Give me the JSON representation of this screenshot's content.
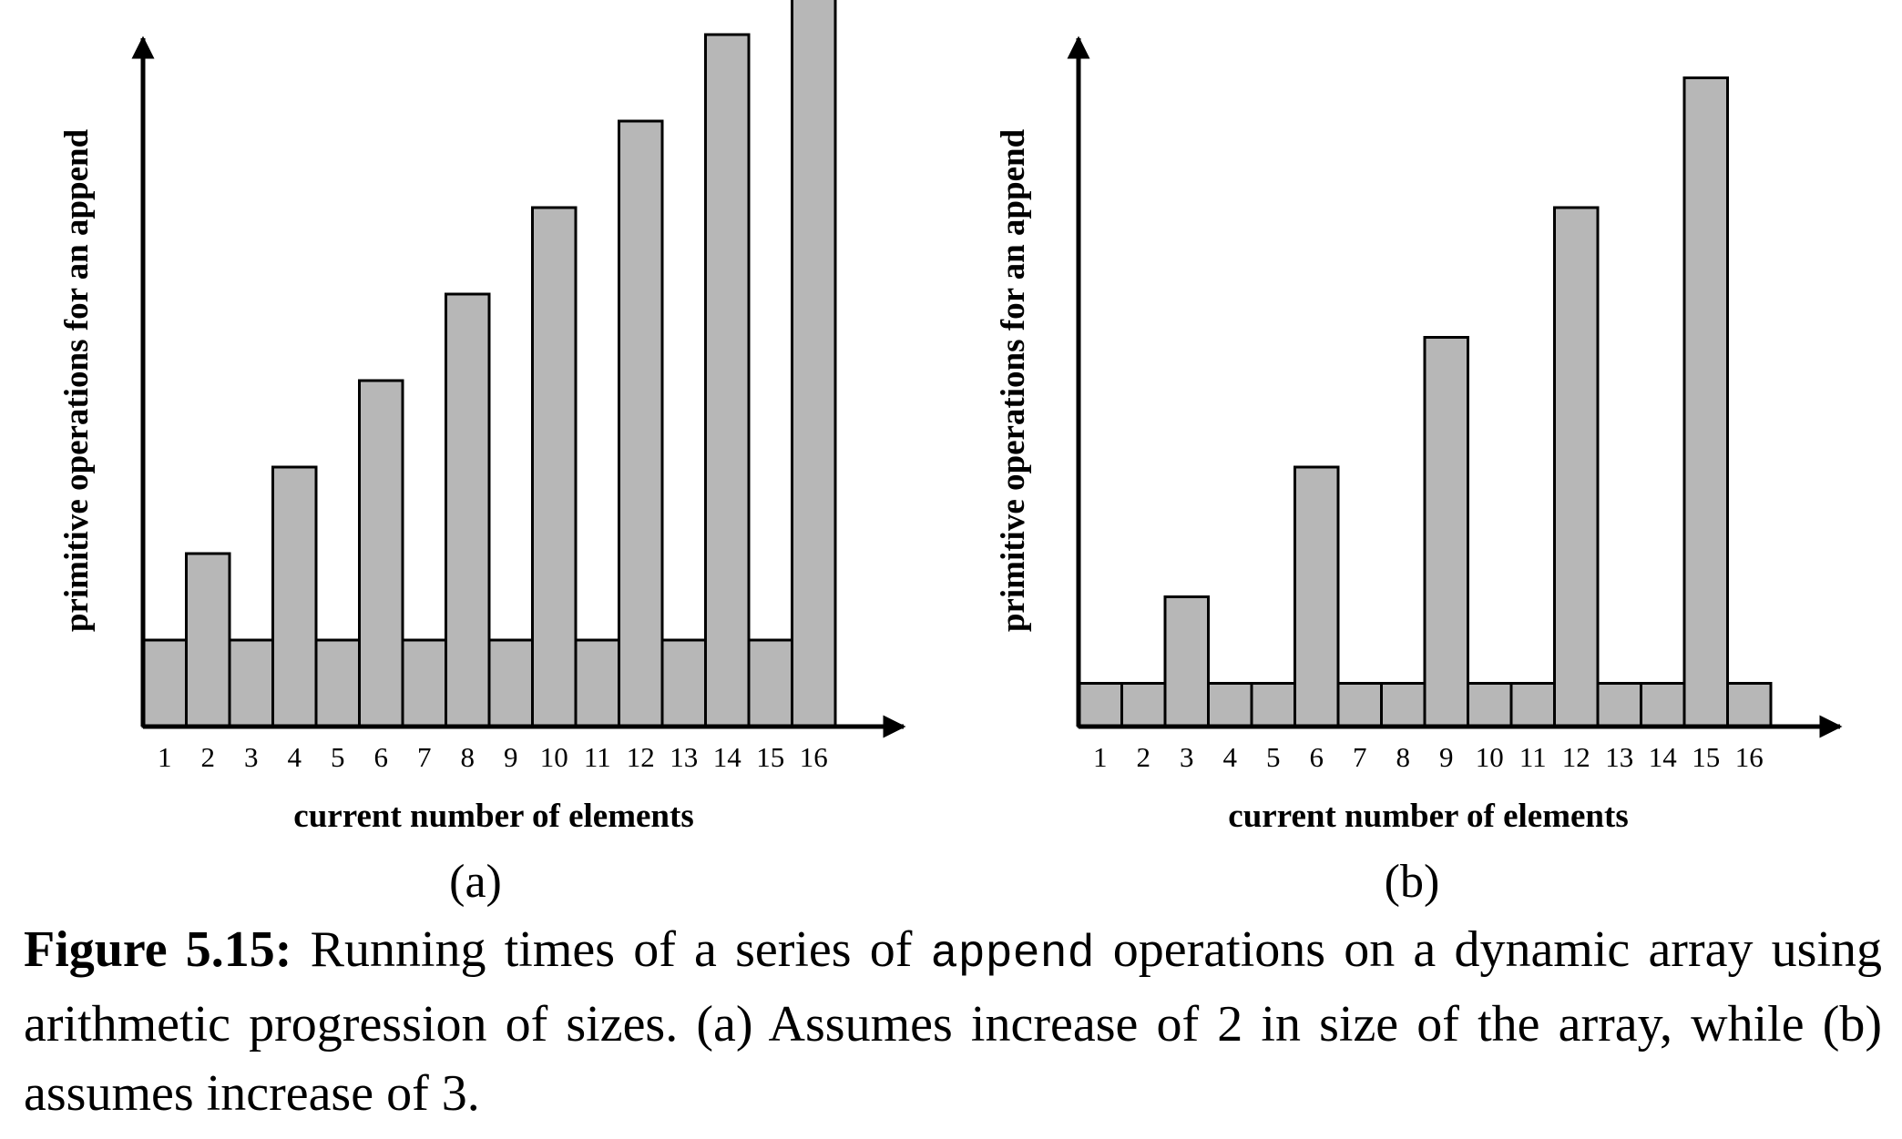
{
  "chart_data": [
    {
      "type": "bar",
      "panel_label": "(a)",
      "xlabel": "current number of elements",
      "ylabel": "primitive operations for an append",
      "categories": [
        "1",
        "2",
        "3",
        "4",
        "5",
        "6",
        "7",
        "8",
        "9",
        "10",
        "11",
        "12",
        "13",
        "14",
        "15",
        "16"
      ],
      "values": [
        1,
        2,
        1,
        3,
        1,
        4,
        1,
        5,
        1,
        6,
        1,
        7,
        1,
        8,
        1,
        9
      ],
      "ylim": [
        0,
        9
      ],
      "grid": false,
      "bar_color": "#b7b7b7"
    },
    {
      "type": "bar",
      "panel_label": "(b)",
      "xlabel": "current number of elements",
      "ylabel": "primitive operations for an append",
      "categories": [
        "1",
        "2",
        "3",
        "4",
        "5",
        "6",
        "7",
        "8",
        "9",
        "10",
        "11",
        "12",
        "13",
        "14",
        "15",
        "16"
      ],
      "values": [
        1,
        1,
        3,
        1,
        1,
        6,
        1,
        1,
        9,
        1,
        1,
        12,
        1,
        1,
        15,
        1
      ],
      "ylim": [
        0,
        15
      ],
      "grid": false,
      "bar_color": "#b7b7b7"
    }
  ],
  "caption": {
    "label": "Figure 5.15:",
    "text_before": " Running times of a series of ",
    "code": "append",
    "text_after": " operations on a dynamic array using arithmetic progression of sizes.  (a) Assumes increase of 2 in size of the array, while (b) assumes increase of 3."
  }
}
